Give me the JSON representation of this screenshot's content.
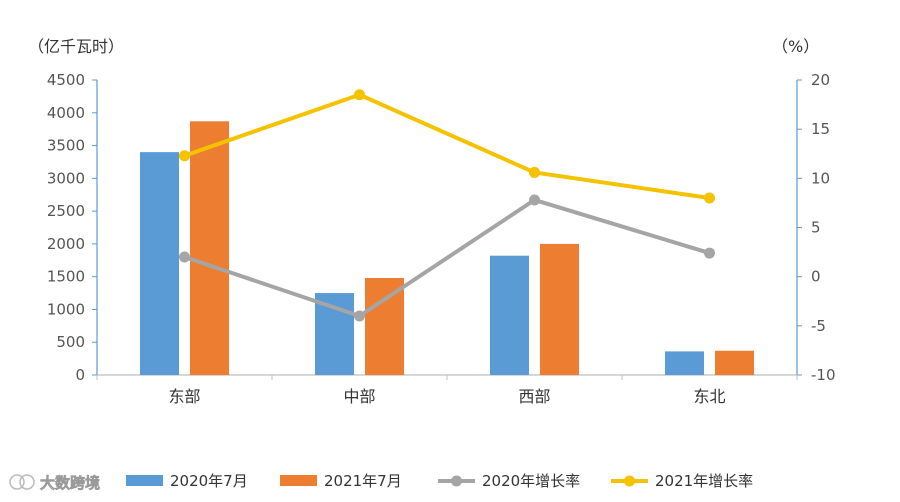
{
  "chart_data": {
    "type": "bar",
    "left_unit": "（亿千瓦时）",
    "right_unit": "（%）",
    "categories": [
      "东部",
      "中部",
      "西部",
      "东北"
    ],
    "series": [
      {
        "name": "2020年7月",
        "kind": "bar",
        "axis": "left",
        "color": "#5B9BD5",
        "values": [
          3400,
          1250,
          1820,
          360
        ]
      },
      {
        "name": "2021年7月",
        "kind": "bar",
        "axis": "left",
        "color": "#ED7D31",
        "values": [
          3870,
          1480,
          2000,
          370
        ]
      },
      {
        "name": "2020年增长率",
        "kind": "line",
        "axis": "right",
        "color": "#A5A5A5",
        "values": [
          2.0,
          -4.0,
          7.8,
          2.4
        ]
      },
      {
        "name": "2021年增长率",
        "kind": "line",
        "axis": "right",
        "color": "#F5C200",
        "values": [
          12.3,
          18.5,
          10.6,
          8.0
        ]
      }
    ],
    "left_axis": {
      "min": 0,
      "max": 4500,
      "ticks": [
        "0",
        "500",
        "1000",
        "1500",
        "2000",
        "2500",
        "3000",
        "3500",
        "4000",
        "4500"
      ]
    },
    "right_axis": {
      "min": -10,
      "max": 20,
      "ticks": [
        "-10",
        "-5",
        "0",
        "5",
        "10",
        "15",
        "20"
      ]
    },
    "legend_position": "bottom",
    "grid": false,
    "axis_color": "#5B9BD5"
  },
  "watermark": "大数跨境"
}
